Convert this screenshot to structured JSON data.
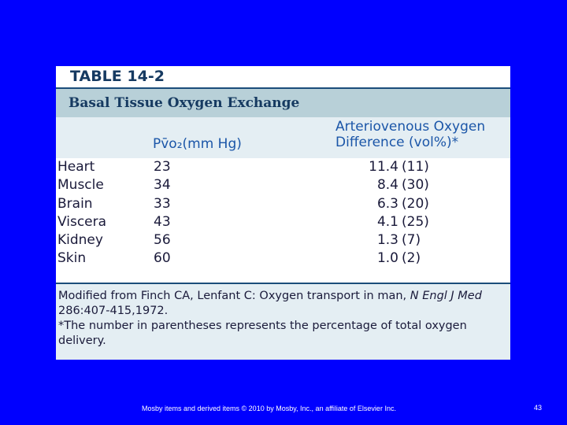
{
  "table": {
    "label": "TABLE 14-2",
    "title": "Basal Tissue Oxygen Exchange",
    "headers": {
      "pvo2": "Pv̄o₂(mm Hg)",
      "avd_line1": "Arteriovenous Oxygen",
      "avd_line2": "Difference (vol%)*"
    },
    "rows": [
      {
        "tissue": "Heart",
        "pvo2": "23",
        "avd": "11.4",
        "pct": "(11)"
      },
      {
        "tissue": "Muscle",
        "pvo2": "34",
        "avd": "8.4",
        "pct": "(30)"
      },
      {
        "tissue": "Brain",
        "pvo2": "33",
        "avd": "6.3",
        "pct": "(20)"
      },
      {
        "tissue": "Viscera",
        "pvo2": "43",
        "avd": "4.1",
        "pct": "(25)"
      },
      {
        "tissue": "Kidney",
        "pvo2": "56",
        "avd": "1.3",
        "pct": "(7)"
      },
      {
        "tissue": "Skin",
        "pvo2": "60",
        "avd": "1.0",
        "pct": "(2)"
      }
    ],
    "footnote": {
      "source_prefix": "Modified from Finch CA, Lenfant C: Oxygen transport in man, ",
      "source_journal": "N Engl J Med",
      "source_suffix": " 286:407-415,1972.",
      "note": "*The number in parentheses represents the percentage of total oxygen delivery."
    }
  },
  "footer": {
    "copyright": "Mosby items and derived items © 2010 by Mosby, Inc., an affiliate of Elsevier Inc.",
    "page_number": "43"
  },
  "colors": {
    "background": "#0000ff",
    "title_bar": "#b8d0d8",
    "header_text": "#1b56a8"
  }
}
